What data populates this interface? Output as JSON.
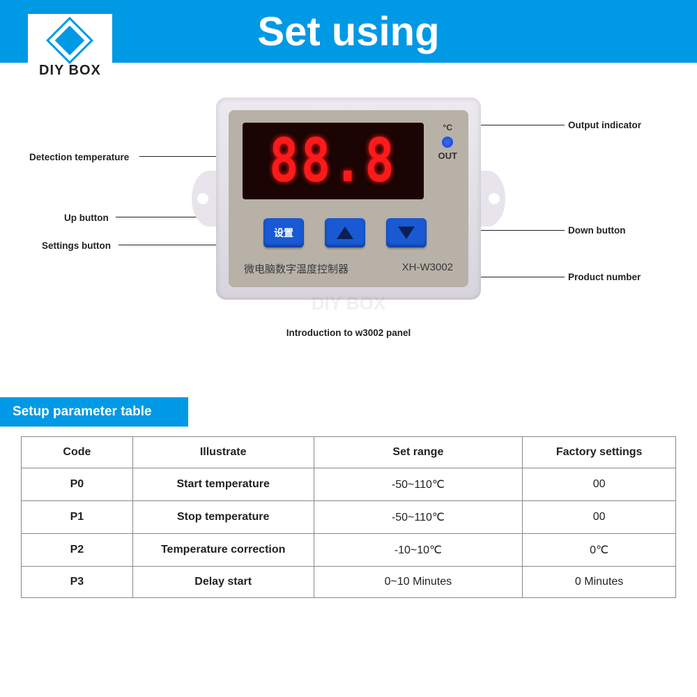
{
  "header": {
    "title": "Set using",
    "logo_text": "DIY BOX"
  },
  "device": {
    "display_value": "88.8",
    "deg_label": "°C",
    "out_label": "OUT",
    "settings_btn": "设置",
    "chinese_label": "微电脑数字温度控制器",
    "model": "XH-W3002"
  },
  "callouts": {
    "output_indicator": "Output indicator",
    "detection_temp": "Detection temperature",
    "up_button": "Up button",
    "settings_button": "Settings button",
    "down_button": "Down button",
    "product_number": "Product number",
    "caption": "Introduction to w3002 panel"
  },
  "watermark": "DIY BOX",
  "section_title": "Setup parameter table",
  "table": {
    "headers": [
      "Code",
      "Illustrate",
      "Set range",
      "Factory settings"
    ],
    "rows": [
      [
        "P0",
        "Start temperature",
        "-50~110℃",
        "00"
      ],
      [
        "P1",
        "Stop temperature",
        "-50~110℃",
        "00"
      ],
      [
        "P2",
        "Temperature correction",
        "-10~10℃",
        "0℃"
      ],
      [
        "P3",
        "Delay start",
        "0~10 Minutes",
        "0 Minutes"
      ]
    ],
    "col_widths": [
      "160px",
      "260px",
      "300px",
      "220px"
    ]
  },
  "colors": {
    "brand": "#0099e5",
    "led": "#1959d4",
    "seg": "#ff1a1a"
  }
}
